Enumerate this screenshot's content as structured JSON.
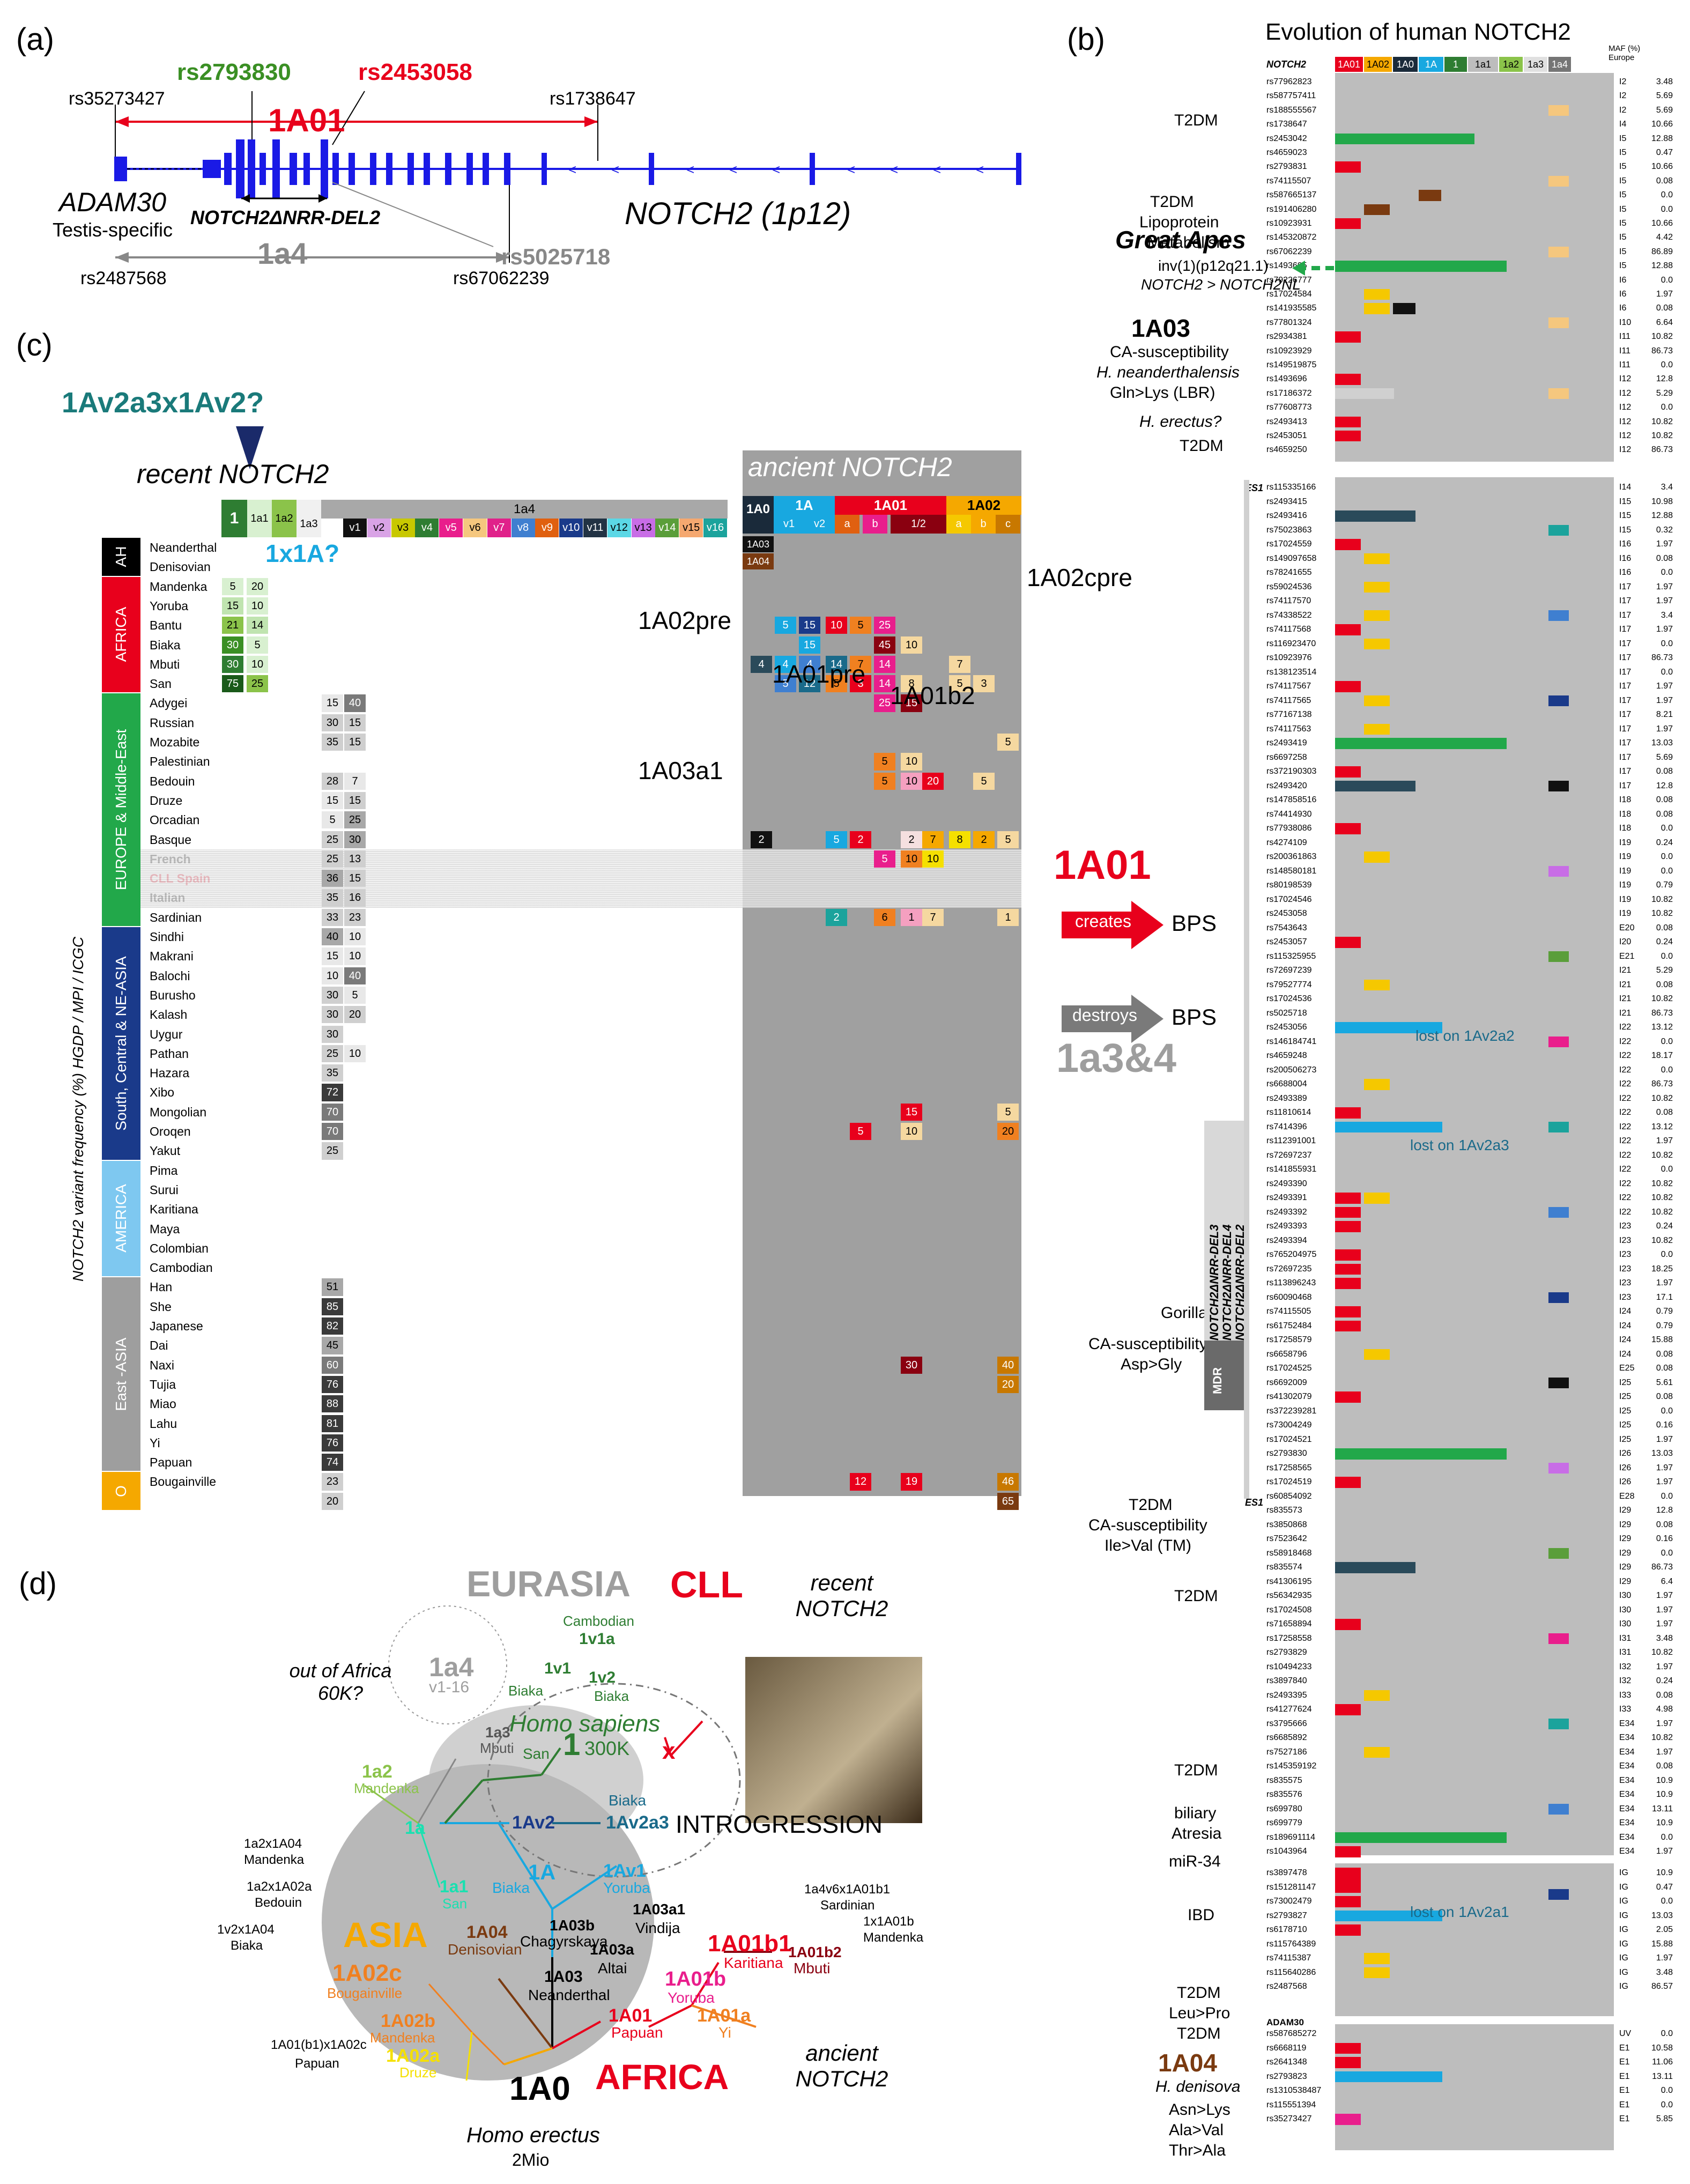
{
  "panel_a": {
    "label": "(a)",
    "gene_left": "ADAM30",
    "gene_left_desc": "Testis-specific",
    "gene_right": "NOTCH2 (1p12)",
    "del_label": "NOTCH2ΔNRR-DEL2",
    "hap_1A01": "1A01",
    "hap_1a4": "1a4",
    "snps": {
      "s1": "rs35273427",
      "s2": "rs2793830",
      "s3": "rs2453058",
      "s4": "rs1738647",
      "s5": "rs5025718",
      "s6": "rs2487568",
      "s7": "rs67062239"
    }
  },
  "panel_b": {
    "label": "(b)",
    "title": "Evolution of human NOTCH2",
    "gene_col": "NOTCH2",
    "maf_header": "MAF (%) Europe",
    "columns": [
      "1A01",
      "1A02",
      "1A0",
      "1A",
      "1",
      "1a1",
      "1a2",
      "1a3",
      "1a4"
    ],
    "column_colors": [
      "#e8001c",
      "#f5a800",
      "#1a2a3a",
      "#18a8e0",
      "#2e7d32",
      "#bdbdbd",
      "#8bc34a",
      "#e0e0e0",
      "#757575"
    ],
    "great_apes_title": "Great Apes",
    "great_apes_note1": "inv(1)(p12q21.1)",
    "great_apes_note2": "NOTCH2 > NOTCH2NL",
    "annotations": {
      "t2dm": "T2DM",
      "lipo": "Lipoprotein",
      "metab": "Metabolism",
      "h1A03": "1A03",
      "ca_sus": "CA-susceptibility",
      "neand": "H. neanderthalensis",
      "gln": "Gln>Lys (LBR)",
      "herectus": "H. erectus?",
      "creates": "creates",
      "destroys": "destroys",
      "bps": "BPS",
      "big_1A01": "1A01",
      "big_1a34": "1a3&4",
      "gorilla": "Gorilla/Pan<",
      "asp": "Asp>Gly",
      "ile": "Ile>Val (TM)",
      "biliary": "biliary",
      "atresia": "Atresia",
      "mir": "miR-34",
      "ibd": "IBD",
      "leupro": "Leu>Pro",
      "h1A04": "1A04",
      "hdeniso": "H. denisova",
      "asn": "Asn>Lys",
      "ala": "Ala>Val",
      "thr": "Thr>Ala",
      "es1": "ES1",
      "mdr": "MDR",
      "del3": "NOTCH2ΔNRR-DEL3",
      "del4": "NOTCH2ΔNRR-DEL4",
      "del2": "NOTCH2ΔNRR-DEL2",
      "lost1": "lost on 1Av2a2",
      "lost2": "lost on 1Av2a3",
      "lost3": "lost on 1Av2a1",
      "gorpan": "<Gorilla/Pan",
      "adam30": "ADAM30"
    },
    "snp_rows": [
      [
        "rs77962823",
        "I2",
        "3.48"
      ],
      [
        "rs587757411",
        "I2",
        "5.69"
      ],
      [
        "rs188555567",
        "I2",
        "5.69"
      ],
      [
        "rs1738647",
        "I4",
        "10.66"
      ],
      [
        "rs2453042",
        "I5",
        "12.88"
      ],
      [
        "rs4659023",
        "I5",
        "0.47"
      ],
      [
        "rs2793831",
        "I5",
        "10.66"
      ],
      [
        "rs74115507",
        "I5",
        "0.08"
      ],
      [
        "rs587665137",
        "I5",
        "0.0"
      ],
      [
        "rs191406280",
        "I5",
        "0.0"
      ],
      [
        "rs10923931",
        "I5",
        "10.66"
      ],
      [
        "rs145320872",
        "I5",
        "4.42"
      ],
      [
        "rs67062239",
        "I5",
        "86.89"
      ],
      [
        "rs1493695",
        "I5",
        "12.88"
      ],
      [
        "rs79226777",
        "I6",
        "0.0"
      ],
      [
        "rs17024584",
        "I6",
        "1.97"
      ],
      [
        "rs141935585",
        "I6",
        "0.08"
      ],
      [
        "rs77801324",
        "I10",
        "6.64"
      ],
      [
        "rs2934381",
        "I11",
        "10.82"
      ],
      [
        "rs10923929",
        "I11",
        "86.73"
      ],
      [
        "rs149519875",
        "I11",
        "0.0"
      ],
      [
        "rs1493696",
        "I12",
        "12.8"
      ],
      [
        "rs17186372",
        "I12",
        "5.29"
      ],
      [
        "rs77608773",
        "I12",
        "0.0"
      ],
      [
        "rs2493413",
        "I12",
        "10.82"
      ],
      [
        "rs2453051",
        "I12",
        "10.82"
      ],
      [
        "rs4659250",
        "I12",
        "86.73"
      ]
    ],
    "snp_rows2": [
      [
        "rs115335166",
        "I14",
        "3.4"
      ],
      [
        "rs2493415",
        "I15",
        "10.98"
      ],
      [
        "rs2493416",
        "I15",
        "12.88"
      ],
      [
        "rs75023863",
        "I15",
        "0.32"
      ],
      [
        "rs17024559",
        "I16",
        "1.97"
      ],
      [
        "rs149097658",
        "I16",
        "0.08"
      ],
      [
        "rs78241655",
        "I16",
        "0.0"
      ],
      [
        "rs59024536",
        "I17",
        "1.97"
      ],
      [
        "rs74117570",
        "I17",
        "1.97"
      ],
      [
        "rs74338522",
        "I17",
        "3.4"
      ],
      [
        "rs74117568",
        "I17",
        "1.97"
      ],
      [
        "rs116923470",
        "I17",
        "0.0"
      ],
      [
        "rs10923976",
        "I17",
        "86.73"
      ],
      [
        "rs138123514",
        "I17",
        "0.0"
      ],
      [
        "rs74117567",
        "I17",
        "1.97"
      ],
      [
        "rs74117565",
        "I17",
        "1.97"
      ],
      [
        "rs77167138",
        "I17",
        "8.21"
      ],
      [
        "rs74117563",
        "I17",
        "1.97"
      ],
      [
        "rs2493419",
        "I17",
        "13.03"
      ],
      [
        "rs6697258",
        "I17",
        "5.69"
      ],
      [
        "rs372190303",
        "I17",
        "0.08"
      ],
      [
        "rs2493420",
        "I17",
        "12.8"
      ],
      [
        "rs147858516",
        "I18",
        "0.08"
      ],
      [
        "rs74414930",
        "I18",
        "0.08"
      ],
      [
        "rs77938086",
        "I18",
        "0.0"
      ],
      [
        "rs4274109",
        "I19",
        "0.24"
      ],
      [
        "rs200361863",
        "I19",
        "0.0"
      ],
      [
        "rs148580181",
        "I19",
        "0.0"
      ],
      [
        "rs80198539",
        "I19",
        "0.79"
      ],
      [
        "rs17024546",
        "I19",
        "10.82"
      ],
      [
        "rs2453058",
        "I19",
        "10.82"
      ],
      [
        "rs7543643",
        "E20",
        "0.08"
      ],
      [
        "rs2453057",
        "I20",
        "0.24"
      ],
      [
        "rs115325955",
        "E21",
        "0.0"
      ],
      [
        "rs72697239",
        "I21",
        "5.29"
      ],
      [
        "rs79527774",
        "I21",
        "0.08"
      ],
      [
        "rs17024536",
        "I21",
        "10.82"
      ],
      [
        "rs5025718",
        "I21",
        "86.73"
      ],
      [
        "rs2453056",
        "I22",
        "13.12"
      ],
      [
        "rs146184741",
        "I22",
        "0.0"
      ],
      [
        "rs4659248",
        "I22",
        "18.17"
      ],
      [
        "rs200506273",
        "I22",
        "0.0"
      ],
      [
        "rs6688004",
        "I22",
        "86.73"
      ],
      [
        "rs2493389",
        "I22",
        "10.82"
      ],
      [
        "rs11810614",
        "I22",
        "0.08"
      ],
      [
        "rs7414396",
        "I22",
        "13.12"
      ],
      [
        "rs112391001",
        "I22",
        "1.97"
      ],
      [
        "rs72697237",
        "I22",
        "10.82"
      ],
      [
        "rs141855931",
        "I22",
        "0.0"
      ],
      [
        "rs2493390",
        "I22",
        "10.82"
      ],
      [
        "rs2493391",
        "I22",
        "10.82"
      ],
      [
        "rs2493392",
        "I22",
        "10.82"
      ],
      [
        "rs2493393",
        "I23",
        "0.24"
      ],
      [
        "rs2493394",
        "I23",
        "10.82"
      ],
      [
        "rs765204975",
        "I23",
        "0.0"
      ],
      [
        "rs72697235",
        "I23",
        "18.25"
      ],
      [
        "rs113896243",
        "I23",
        "1.97"
      ],
      [
        "rs60090468",
        "I23",
        "17.1"
      ],
      [
        "rs74115505",
        "I24",
        "0.79"
      ],
      [
        "rs61752484",
        "I24",
        "0.79"
      ],
      [
        "rs17258579",
        "I24",
        "15.88"
      ],
      [
        "rs6658796",
        "I24",
        "0.08"
      ],
      [
        "rs17024525",
        "E25",
        "0.08"
      ],
      [
        "rs6692009",
        "I25",
        "5.61"
      ],
      [
        "rs41302079",
        "I25",
        "0.08"
      ],
      [
        "rs372239281",
        "I25",
        "0.0"
      ],
      [
        "rs73004249",
        "I25",
        "0.16"
      ],
      [
        "rs17024521",
        "I25",
        "1.97"
      ],
      [
        "rs2793830",
        "I26",
        "13.03"
      ],
      [
        "rs17258565",
        "I26",
        "1.97"
      ],
      [
        "rs17024519",
        "I26",
        "1.97"
      ],
      [
        "rs60854092",
        "E28",
        "0.0"
      ],
      [
        "rs835573",
        "I29",
        "12.8"
      ],
      [
        "rs3850868",
        "I29",
        "0.08"
      ],
      [
        "rs7523642",
        "I29",
        "0.16"
      ],
      [
        "rs58918468",
        "I29",
        "0.0"
      ],
      [
        "rs835574",
        "I29",
        "86.73"
      ],
      [
        "rs41306195",
        "I29",
        "6.4"
      ],
      [
        "rs56342935",
        "I30",
        "1.97"
      ],
      [
        "rs17024508",
        "I30",
        "1.97"
      ],
      [
        "rs71658894",
        "I30",
        "1.97"
      ],
      [
        "rs17258558",
        "I31",
        "3.48"
      ],
      [
        "rs2793829",
        "I31",
        "10.82"
      ],
      [
        "rs10494233",
        "I32",
        "1.97"
      ],
      [
        "rs3897840",
        "I32",
        "0.24"
      ],
      [
        "rs2493395",
        "I33",
        "0.08"
      ],
      [
        "rs41277624",
        "I33",
        "4.98"
      ],
      [
        "rs3795666",
        "E34",
        "1.97"
      ],
      [
        "rs6685892",
        "E34",
        "10.82"
      ],
      [
        "rs7527186",
        "E34",
        "1.97"
      ],
      [
        "rs145359192",
        "E34",
        "0.08"
      ],
      [
        "rs835575",
        "E34",
        "10.9"
      ],
      [
        "rs835576",
        "E34",
        "10.9"
      ],
      [
        "rs699780",
        "E34",
        "13.11"
      ],
      [
        "rs699779",
        "E34",
        "10.9"
      ],
      [
        "rs189691114",
        "E34",
        "0.0"
      ],
      [
        "rs1043964",
        "E34",
        "1.97"
      ]
    ],
    "snp_rows3": [
      [
        "rs3897478",
        "IG",
        "10.9"
      ],
      [
        "rs151281147",
        "IG",
        "0.47"
      ],
      [
        "rs73002479",
        "IG",
        "0.0"
      ],
      [
        "rs2793827",
        "IG",
        "13.03"
      ],
      [
        "rs6178710",
        "IG",
        "2.05"
      ],
      [
        "rs115764389",
        "IG",
        "15.88"
      ],
      [
        "rs74115387",
        "IG",
        "1.97"
      ],
      [
        "rs115640286",
        "IG",
        "3.48"
      ],
      [
        "rs2487568",
        "IG",
        "86.57"
      ]
    ],
    "snp_rows4": [
      [
        "rs587685272",
        "UV",
        "0.0"
      ],
      [
        "rs6668119",
        "E1",
        "10.58"
      ],
      [
        "rs2641348",
        "E1",
        "11.06"
      ],
      [
        "rs2793823",
        "E1",
        "13.11"
      ],
      [
        "rs1310538487",
        "E1",
        "0.0"
      ],
      [
        "rs115551394",
        "E1",
        "0.0"
      ],
      [
        "rs35273427",
        "E1",
        "5.85"
      ]
    ]
  },
  "panel_c": {
    "label": "(c)",
    "top_q": "1Av2a3x1Av2?",
    "recent": "recent NOTCH2",
    "ancient": "ancient NOTCH2",
    "q2": "1x1A?",
    "yaxis": "NOTCH2 variant frequency (%) HGDP / MPI / ICGC",
    "col_1": "1",
    "col_1a1": "1a1",
    "col_1a2": "1a2",
    "col_1a3": "1a3",
    "col_1a4": "1a4",
    "v_labels": [
      "v1",
      "v2",
      "v3",
      "v4",
      "v5",
      "v6",
      "v7",
      "v8",
      "v9",
      "v10",
      "v11",
      "v12",
      "v13",
      "v14",
      "v15",
      "v16"
    ],
    "v_colors": [
      "#111111",
      "#d9a3e6",
      "#c8c800",
      "#2e7d32",
      "#e91e8c",
      "#f5c77e",
      "#e0218a",
      "#3f7fd0",
      "#e06010",
      "#1a3a8a",
      "#223344",
      "#5bd8e6",
      "#c86de6",
      "#5a9e3a",
      "#f5a870",
      "#1ba39c"
    ],
    "anc_1A0": "1A0",
    "anc_1A": "1A",
    "anc_1A01": "1A01",
    "anc_1A02": "1A02",
    "anc_sub": [
      "v1",
      "v2",
      "a",
      "b",
      "1/2",
      "a",
      "b",
      "c"
    ],
    "regions": [
      {
        "name": "AH",
        "color": "#000000"
      },
      {
        "name": "AFRICA",
        "color": "#e8001c"
      },
      {
        "name": "EUROPE & Middle-East",
        "color": "#22a84a"
      },
      {
        "name": "South, Central & NE-ASIA",
        "color": "#1a3a8a"
      },
      {
        "name": "AMERICA",
        "color": "#7ec8f0"
      },
      {
        "name": "East -ASIA",
        "color": "#9e9e9e"
      },
      {
        "name": "O",
        "color": "#f5a800"
      }
    ],
    "populations": [
      "Neanderthal",
      "Denisovian",
      "Mandenka",
      "Yoruba",
      "Bantu",
      "Biaka",
      "Mbuti",
      "San",
      "Adygei",
      "Russian",
      "Mozabite",
      "Palestinian",
      "Bedouin",
      "Druze",
      "Orcadian",
      "Basque",
      "French",
      "CLL Spain",
      "Italian",
      "Sardinian",
      "Sindhi",
      "Makrani",
      "Balochi",
      "Burusho",
      "Kalash",
      "Uygur",
      "Pathan",
      "Hazara",
      "Xibo",
      "Mongolian",
      "Oroqen",
      "Yakut",
      "Pima",
      "Surui",
      "Karitiana",
      "Maya",
      "Colombian",
      "Cambodian",
      "Han",
      "She",
      "Japanese",
      "Dai",
      "Naxi",
      "Tujia",
      "Miao",
      "Lahu",
      "Yi",
      "Papuan",
      "Bougainville"
    ],
    "anc_tags": {
      "a3": "1A03",
      "a4": "1A04"
    },
    "labels": {
      "pre2": "1A02pre",
      "pre2c": "1A02cpre",
      "pre1": "1A01pre",
      "b2": "1A01b2",
      "a3a1": "1A03a1"
    }
  },
  "panel_d": {
    "label": "(d)",
    "eurasia": "EURASIA",
    "cll": "CLL",
    "recent": "recent NOTCH2",
    "ancient": "ancient NOTCH2",
    "asia": "ASIA",
    "africa": "AFRICA",
    "homo_sapiens": "Homo sapiens",
    "hs_age": "300K",
    "introgression": "INTROGRESSION",
    "homo_erectus": "Homo erectus",
    "he_age": "2Mio",
    "out_africa": "out of Africa 60K?",
    "nodes": {
      "n1a4": "1a4",
      "n1a4v": "v1-16",
      "n1a3": "1a3",
      "n1a3p": "Mbuti",
      "n1a2": "1a2",
      "n1a2p": "Mandenka",
      "n1a": "1a",
      "n1a1": "1a1",
      "n1a1p": "San",
      "n1": "1",
      "n1p": "San",
      "n1v1": "1v1",
      "n1v1a": "1v1a",
      "n1v1ap": "Cambodian",
      "n1v1p": "Biaka",
      "n1v2": "1v2",
      "n1v2p": "Biaka",
      "n1Av2": "1Av2",
      "n1Av2a3": "1Av2a3",
      "n1Av2a3p": "Biaka",
      "n1A": "1A",
      "n1Ap": "Biaka",
      "n1Av1": "1Av1",
      "n1Av1p": "Yoruba",
      "n1A04": "1A04",
      "n1A04p": "Denisovian",
      "n1A03b": "1A03b",
      "n1A03bp": "Chagyrskaya",
      "n1A03a": "1A03a",
      "n1A03ap": "Altai",
      "n1A03a1": "1A03a1",
      "n1A03a1p": "Vindija",
      "n1A03": "1A03",
      "n1A03p": "Neanderthal",
      "n1A0": "1A0",
      "n1A01": "1A01",
      "n1A01p": "Papuan",
      "n1A01a": "1A01a",
      "n1A01ap": "Yi",
      "n1A01b": "1A01b",
      "n1A01bp": "Yoruba",
      "n1A01b1": "1A01b1",
      "n1A01b1p": "Karitiana",
      "n1A01b2": "1A01b2",
      "n1A01b2p": "Mbuti",
      "n1A02c": "1A02c",
      "n1A02cp": "Bougainville",
      "n1A02b": "1A02b",
      "n1A02bp": "Mandenka",
      "n1A02a": "1A02a",
      "n1A02ap": "Druze"
    },
    "mixes": {
      "m1": "1a2x1A04",
      "m1p": "Mandenka",
      "m2": "1a2x1A02a",
      "m2p": "Bedouin",
      "m3": "1v2x1A04",
      "m3p": "Biaka",
      "m4": "1A01(b1)x1A02c",
      "m4p": "Papuan",
      "m5": "1a4v6x1A01b1",
      "m5p": "Sardinian",
      "m6": "1x1A01b",
      "m6p": "Mandenka"
    }
  }
}
